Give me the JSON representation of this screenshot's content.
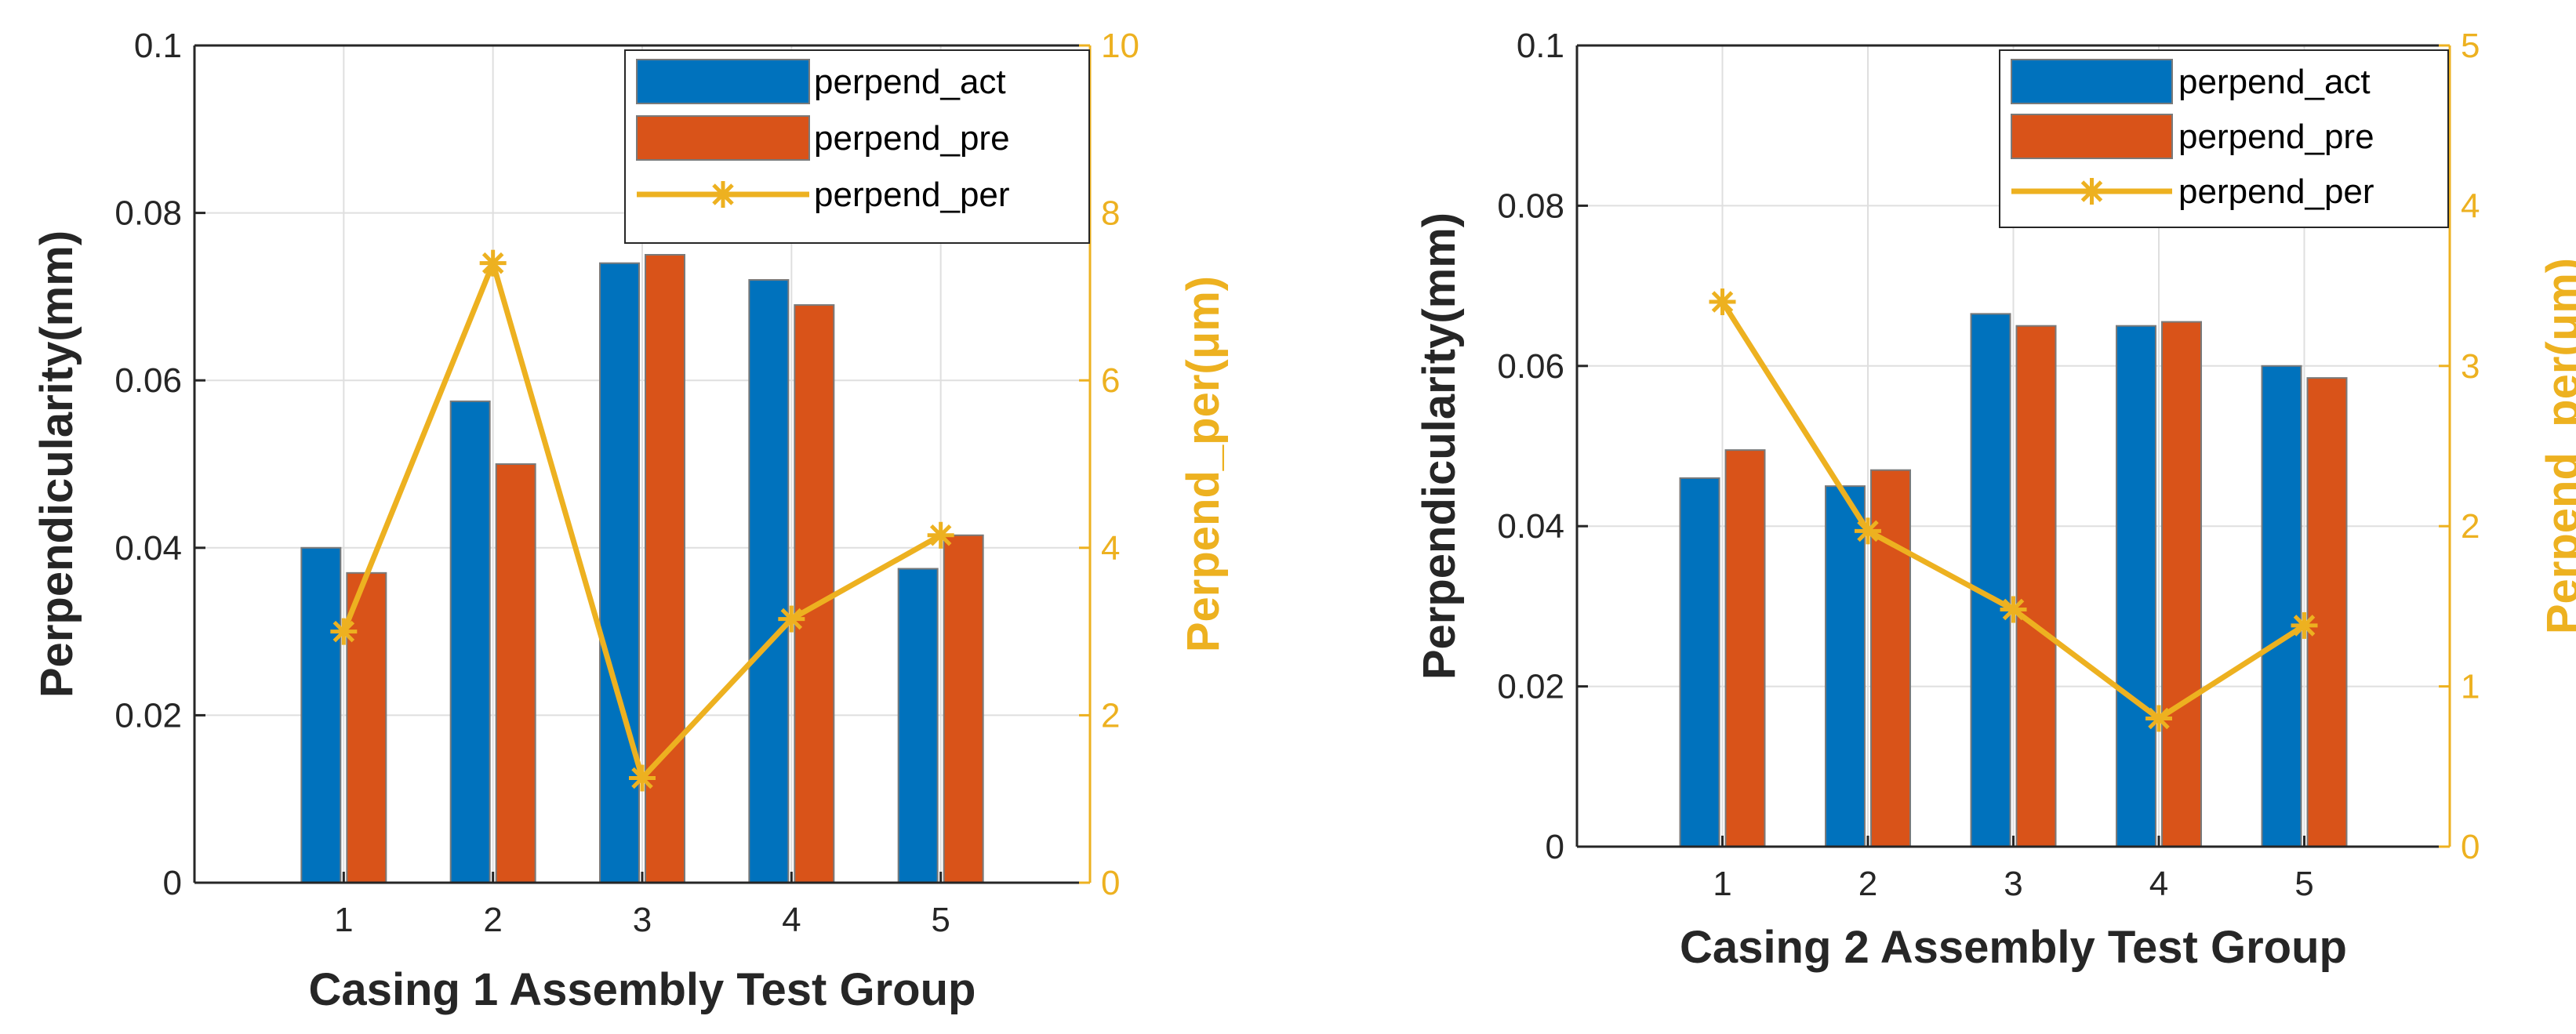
{
  "colors": {
    "act": "#0072BD",
    "pre": "#D95319",
    "per": "#EDB120",
    "axis": "#262626",
    "grid": "#DFDFDF"
  },
  "chart_data": [
    {
      "type": "bar",
      "title": "",
      "xlabel": "Casing 1 Assembly Test Group",
      "ylabel": "Perpendicularity(mm)",
      "ylabel_right": "Perpend_per(μm)",
      "categories": [
        "1",
        "2",
        "3",
        "4",
        "5"
      ],
      "ylim": [
        0,
        0.1
      ],
      "yticks": [
        0,
        0.02,
        0.04,
        0.06,
        0.08,
        0.1
      ],
      "ytick_labels": [
        "0",
        "0.02",
        "0.04",
        "0.06",
        "0.08",
        "0.1"
      ],
      "ylim_right": [
        0,
        10
      ],
      "yticks_right": [
        0,
        2,
        4,
        6,
        8,
        10
      ],
      "ytick_labels_right": [
        "0",
        "2",
        "4",
        "6",
        "8",
        "10"
      ],
      "grid": true,
      "legend_position": "top-right",
      "series": [
        {
          "name": "perpend_act",
          "kind": "bar",
          "axis": "left",
          "values": [
            0.04,
            0.0575,
            0.074,
            0.072,
            0.0375
          ]
        },
        {
          "name": "perpend_pre",
          "kind": "bar",
          "axis": "left",
          "values": [
            0.037,
            0.05,
            0.075,
            0.069,
            0.0415
          ]
        },
        {
          "name": "perpend_per",
          "kind": "line",
          "marker": "asterisk",
          "axis": "right",
          "values": [
            3.0,
            7.4,
            1.25,
            3.15,
            4.15
          ]
        }
      ]
    },
    {
      "type": "bar",
      "title": "",
      "xlabel": "Casing 2 Assembly Test Group",
      "ylabel": "Perpendicularity(mm)",
      "ylabel_right": "Perpend_per(μm)",
      "categories": [
        "1",
        "2",
        "3",
        "4",
        "5"
      ],
      "ylim": [
        0,
        0.1
      ],
      "yticks": [
        0,
        0.02,
        0.04,
        0.06,
        0.08,
        0.1
      ],
      "ytick_labels": [
        "0",
        "0.02",
        "0.04",
        "0.06",
        "0.08",
        "0.1"
      ],
      "ylim_right": [
        0,
        5
      ],
      "yticks_right": [
        0,
        1,
        2,
        3,
        4,
        5
      ],
      "ytick_labels_right": [
        "0",
        "1",
        "2",
        "3",
        "4",
        "5"
      ],
      "grid": true,
      "legend_position": "top-right",
      "series": [
        {
          "name": "perpend_act",
          "kind": "bar",
          "axis": "left",
          "values": [
            0.046,
            0.045,
            0.0665,
            0.065,
            0.06
          ]
        },
        {
          "name": "perpend_pre",
          "kind": "bar",
          "axis": "left",
          "values": [
            0.0495,
            0.047,
            0.065,
            0.0655,
            0.0585
          ]
        },
        {
          "name": "perpend_per",
          "kind": "line",
          "marker": "asterisk",
          "axis": "right",
          "values": [
            3.4,
            1.97,
            1.48,
            0.8,
            1.38
          ]
        }
      ]
    }
  ]
}
